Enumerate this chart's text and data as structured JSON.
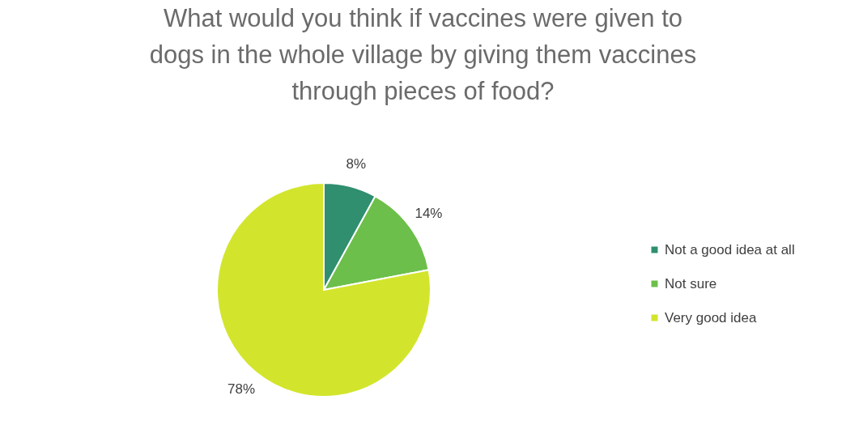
{
  "chart_data": {
    "type": "pie",
    "title": "What would you think if vaccines were given to dogs in the whole village by giving them vaccines through pieces of food?",
    "categories": [
      "Not a good idea at all",
      "Not sure",
      "Very good idea"
    ],
    "values": [
      8,
      14,
      78
    ],
    "colors": [
      "#2f8f6e",
      "#6cbf4a",
      "#d2e52c"
    ],
    "value_labels": [
      "8%",
      "14%",
      "78%"
    ],
    "legend": "right"
  }
}
